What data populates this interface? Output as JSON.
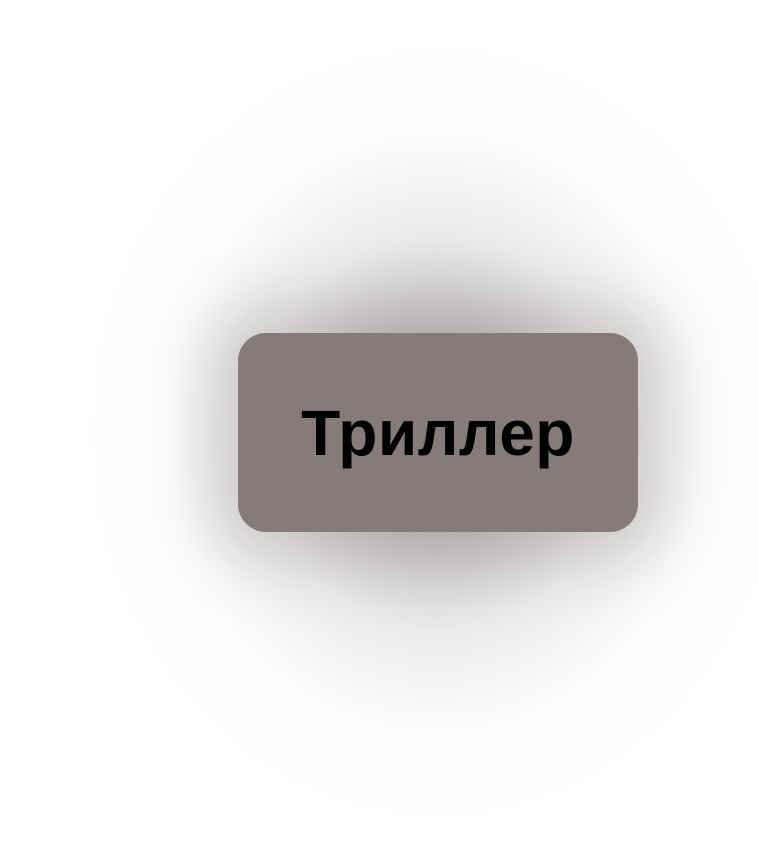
{
  "genre_tag": {
    "label": "Триллер",
    "background_color": "#857b7a",
    "text_color": "#000000"
  }
}
